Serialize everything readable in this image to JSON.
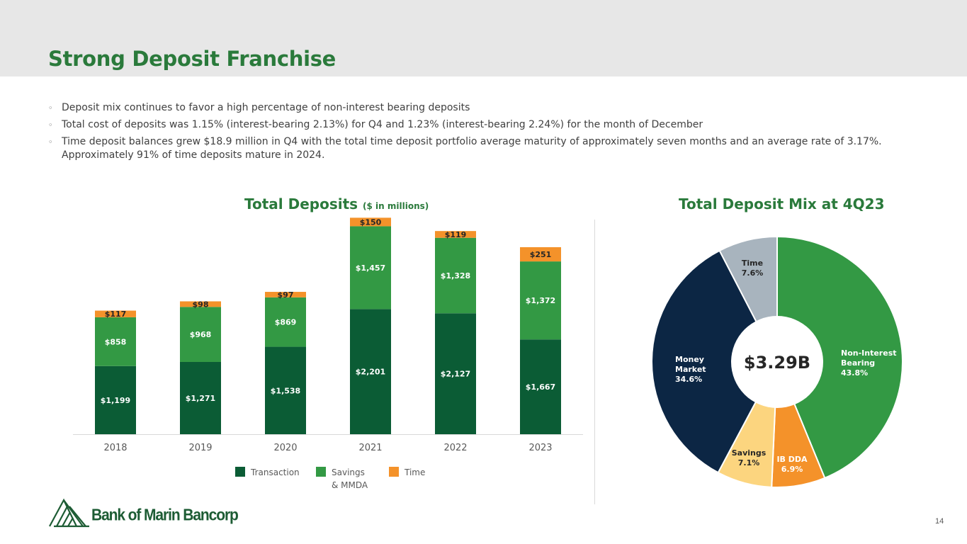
{
  "title": "Strong Deposit Franchise",
  "bullets": [
    "Deposit mix continues to favor a high percentage of non-interest bearing deposits",
    "Total cost of deposits was 1.15% (interest-bearing 2.13%) for Q4 and 1.23% (interest-bearing 2.24%) for the month of December",
    "Time deposit balances grew $18.9 million in Q4 with the total time deposit portfolio average maturity of approximately seven months and an average rate of 3.17%. Approximately 91% of time deposits mature in 2024."
  ],
  "bullet_marker": "◦",
  "colors": {
    "transaction": "#0b5c35",
    "savings": "#339944",
    "time": "#f4922a",
    "non_interest": "#339944",
    "ib_dda": "#f4922a",
    "pie_savings": "#fcd57f",
    "money_market": "#0c2644",
    "pie_time": "#a8b4be",
    "title_green": "#2a7a3b"
  },
  "chart_data": [
    {
      "type": "bar",
      "stacked": true,
      "title": "Total Deposits",
      "subtitle": "($ in millions)",
      "categories": [
        "2018",
        "2019",
        "2020",
        "2021",
        "2022",
        "2023"
      ],
      "series": [
        {
          "name": "Transaction",
          "key": "transaction",
          "values": [
            1199,
            1271,
            1538,
            2201,
            2127,
            1667
          ],
          "labels": [
            "$1,199",
            "$1,271",
            "$1,538",
            "$2,201",
            "$2,127",
            "$1,667"
          ]
        },
        {
          "name": "Savings & MMDA",
          "key": "savings",
          "values": [
            858,
            968,
            869,
            1457,
            1328,
            1372
          ],
          "labels": [
            "$858",
            "$968",
            "$869",
            "$1,457",
            "$1,328",
            "$1,372"
          ]
        },
        {
          "name": "Time",
          "key": "time",
          "values": [
            117,
            98,
            97,
            150,
            119,
            251
          ],
          "labels": [
            "$117",
            "$98",
            "$97",
            "$150",
            "$119",
            "$251"
          ]
        }
      ],
      "legend": [
        {
          "key": "transaction",
          "lines": [
            "Transaction"
          ]
        },
        {
          "key": "savings",
          "lines": [
            "Savings",
            "& MMDA"
          ]
        },
        {
          "key": "time",
          "lines": [
            "Time"
          ]
        }
      ],
      "legend_position": "bottom",
      "ylim": [
        0,
        3900
      ]
    },
    {
      "type": "pie",
      "title": "Total Deposit Mix at 4Q23",
      "center_label": "$3.29B",
      "slices": [
        {
          "key": "non_interest",
          "lines": [
            "Non-Interest",
            "Bearing",
            "43.8%"
          ],
          "value": 43.8
        },
        {
          "key": "ib_dda",
          "lines": [
            "IB DDA",
            "6.9%"
          ],
          "value": 6.9
        },
        {
          "key": "pie_savings",
          "lines": [
            "Savings",
            "7.1%"
          ],
          "value": 7.1
        },
        {
          "key": "money_market",
          "lines": [
            "Money",
            "Market",
            "34.6%"
          ],
          "value": 34.6
        },
        {
          "key": "pie_time",
          "lines": [
            "Time",
            "7.6%"
          ],
          "value": 7.6
        }
      ]
    }
  ],
  "logo": {
    "text": "Bank of Marin Bancorp"
  },
  "page_number": "14"
}
